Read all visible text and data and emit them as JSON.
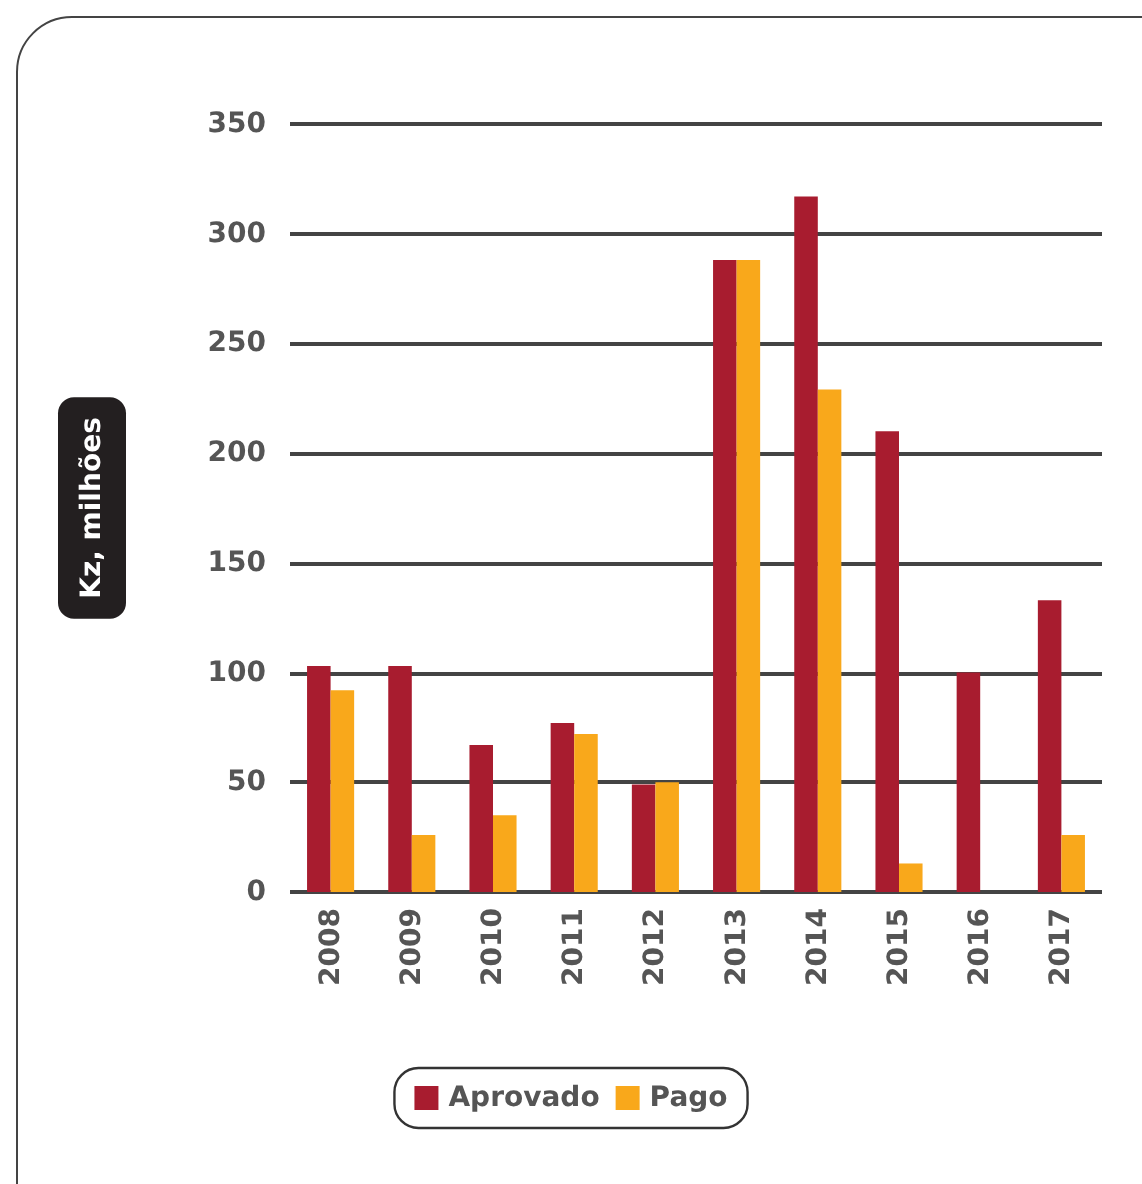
{
  "chart_data": {
    "type": "bar",
    "ylabel": "Kz, milhões",
    "categories": [
      "2008",
      "2009",
      "2010",
      "2011",
      "2012",
      "2013",
      "2014",
      "2015",
      "2016",
      "2017"
    ],
    "series": [
      {
        "name": "Aprovado",
        "color": "#a81c2f",
        "values": [
          103,
          103,
          67,
          77,
          49,
          288,
          317,
          210,
          100,
          133
        ]
      },
      {
        "name": "Pago",
        "color": "#f9a81b",
        "values": [
          92,
          26,
          35,
          72,
          50,
          288,
          229,
          13,
          0,
          26
        ]
      }
    ],
    "ylim": [
      0,
      350
    ],
    "yticks": [
      0,
      50,
      100,
      150,
      200,
      250,
      300,
      350
    ],
    "grid": "y",
    "legend": "bottom"
  }
}
